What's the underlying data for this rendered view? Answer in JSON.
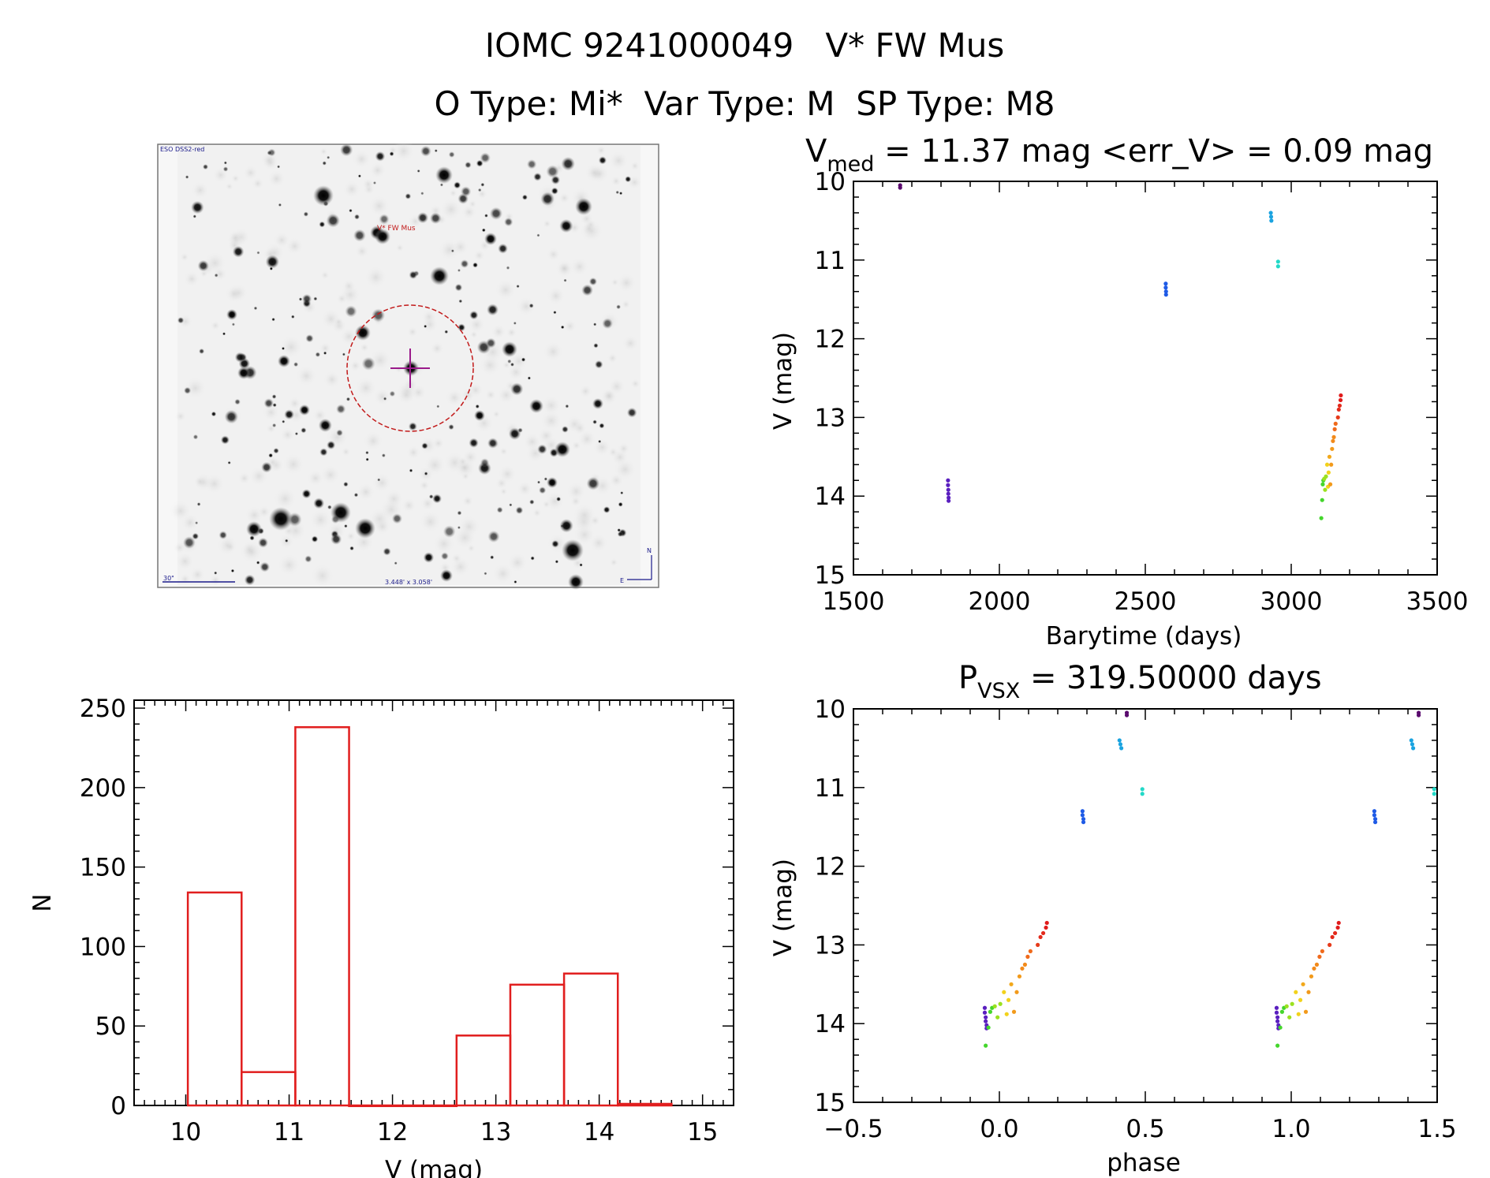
{
  "header": {
    "title_line1": "IOMC 9241000049   V* FW Mus",
    "title_line2": "O Type: Mi*  Var Type: M  SP Type: M8"
  },
  "finder_image": {
    "survey_label": "ESO DSS2-red",
    "target_label": "V* FW Mus",
    "scale_label": "30\"",
    "fov_label": "3.448' x 3.058'",
    "compass_n": "N",
    "compass_e": "E"
  },
  "chart_data": [
    {
      "id": "lightcurve",
      "type": "scatter",
      "title_main": "V",
      "title_sub": "med",
      "title_rest": " = 11.37 mag <err_V> = 0.09 mag",
      "xlabel": "Barytime (days)",
      "ylabel": "V (mag)",
      "xlim": [
        1500,
        3500
      ],
      "ylim": [
        15,
        10
      ],
      "y_inverted": true,
      "xticks": [
        1500,
        2000,
        2500,
        3000,
        3500
      ],
      "yticks": [
        10,
        11,
        12,
        13,
        14,
        15
      ],
      "points": [
        {
          "x": 1660,
          "y": 10.05,
          "color": "#5a0a6e"
        },
        {
          "x": 1660,
          "y": 10.08,
          "color": "#5a0a6e"
        },
        {
          "x": 1824,
          "y": 13.8,
          "color": "#5a1fbf"
        },
        {
          "x": 1824,
          "y": 13.86,
          "color": "#5a1fbf"
        },
        {
          "x": 1825,
          "y": 13.92,
          "color": "#5a1fbf"
        },
        {
          "x": 1825,
          "y": 13.97,
          "color": "#5a1fbf"
        },
        {
          "x": 1826,
          "y": 14.02,
          "color": "#5a1fbf"
        },
        {
          "x": 1826,
          "y": 14.06,
          "color": "#5a1fbf"
        },
        {
          "x": 2570,
          "y": 11.3,
          "color": "#1f5be6"
        },
        {
          "x": 2570,
          "y": 11.35,
          "color": "#1f5be6"
        },
        {
          "x": 2571,
          "y": 11.4,
          "color": "#1f5be6"
        },
        {
          "x": 2571,
          "y": 11.44,
          "color": "#1f5be6"
        },
        {
          "x": 2930,
          "y": 10.4,
          "color": "#1aa3e0"
        },
        {
          "x": 2931,
          "y": 10.45,
          "color": "#1aa3e0"
        },
        {
          "x": 2932,
          "y": 10.5,
          "color": "#1aa3e0"
        },
        {
          "x": 2955,
          "y": 11.02,
          "color": "#23d9c8"
        },
        {
          "x": 2955,
          "y": 11.08,
          "color": "#23d9c8"
        },
        {
          "x": 3103,
          "y": 14.28,
          "color": "#44d62c"
        },
        {
          "x": 3106,
          "y": 14.05,
          "color": "#44d62c"
        },
        {
          "x": 3108,
          "y": 13.85,
          "color": "#44d62c"
        },
        {
          "x": 3110,
          "y": 13.8,
          "color": "#44d62c"
        },
        {
          "x": 3113,
          "y": 13.78,
          "color": "#9be11f"
        },
        {
          "x": 3116,
          "y": 13.92,
          "color": "#9be11f"
        },
        {
          "x": 3119,
          "y": 13.75,
          "color": "#9be11f"
        },
        {
          "x": 3123,
          "y": 13.6,
          "color": "#f2d21b"
        },
        {
          "x": 3126,
          "y": 13.88,
          "color": "#f2d21b"
        },
        {
          "x": 3128,
          "y": 13.7,
          "color": "#f2d21b"
        },
        {
          "x": 3131,
          "y": 13.5,
          "color": "#f2a81b"
        },
        {
          "x": 3134,
          "y": 13.85,
          "color": "#f29a1b"
        },
        {
          "x": 3137,
          "y": 13.6,
          "color": "#f29a1b"
        },
        {
          "x": 3140,
          "y": 13.4,
          "color": "#f29a1b"
        },
        {
          "x": 3143,
          "y": 13.3,
          "color": "#f28a1b"
        },
        {
          "x": 3146,
          "y": 13.25,
          "color": "#f28a1b"
        },
        {
          "x": 3149,
          "y": 13.15,
          "color": "#f06a1b"
        },
        {
          "x": 3152,
          "y": 13.08,
          "color": "#f06a1b"
        },
        {
          "x": 3160,
          "y": 13.0,
          "color": "#e63b1b"
        },
        {
          "x": 3163,
          "y": 12.9,
          "color": "#e32a1b"
        },
        {
          "x": 3166,
          "y": 12.85,
          "color": "#e32a1b"
        },
        {
          "x": 3169,
          "y": 12.78,
          "color": "#e01b1b"
        },
        {
          "x": 3170,
          "y": 12.72,
          "color": "#e01b1b"
        }
      ]
    },
    {
      "id": "histogram",
      "type": "bar",
      "title": "",
      "xlabel": "V (mag)",
      "ylabel": "N",
      "xlim": [
        9.5,
        15.3
      ],
      "ylim": [
        0,
        255
      ],
      "xticks": [
        10,
        11,
        12,
        13,
        14,
        15
      ],
      "yticks": [
        0,
        50,
        100,
        150,
        200,
        250
      ],
      "bin_edges": [
        10.02,
        10.54,
        11.06,
        11.58,
        12.1,
        12.62,
        13.14,
        13.66,
        14.18,
        14.7
      ],
      "counts": [
        134,
        21,
        238,
        0,
        0,
        44,
        76,
        83,
        1
      ],
      "bar_color": "#e11e1e"
    },
    {
      "id": "phased",
      "type": "scatter",
      "title_main": "P",
      "title_sub": "VSX",
      "title_rest": " = 319.50000 days",
      "xlabel": "phase",
      "ylabel": "V (mag)",
      "xlim": [
        -0.5,
        1.5
      ],
      "ylim": [
        15,
        10
      ],
      "y_inverted": true,
      "xticks": [
        -0.5,
        0.0,
        0.5,
        1.0,
        1.5
      ],
      "xtick_labels": [
        "−0.5",
        "0.0",
        "0.5",
        "1.0",
        "1.5"
      ],
      "yticks": [
        10,
        11,
        12,
        13,
        14,
        15
      ],
      "period": 319.5,
      "epoch": 1840
    }
  ]
}
